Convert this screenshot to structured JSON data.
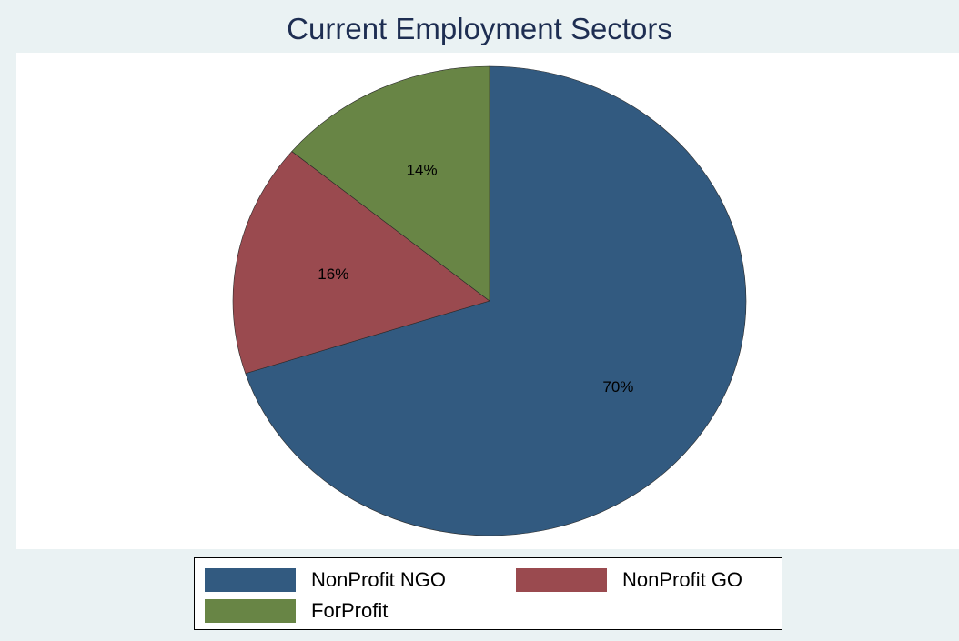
{
  "chart_data": {
    "type": "pie",
    "title": "Current Employment Sectors",
    "slices": [
      {
        "label": "NonProfit NGO",
        "value": 70,
        "display": "70%",
        "color": "#325a80"
      },
      {
        "label": "NonProfit GO",
        "value": 16,
        "display": "16%",
        "color": "#9a4a4f"
      },
      {
        "label": "ForProfit",
        "value": 14,
        "display": "14%",
        "color": "#688545"
      }
    ],
    "legend_position": "bottom",
    "start_angle": "12 o'clock",
    "direction": "clockwise"
  }
}
